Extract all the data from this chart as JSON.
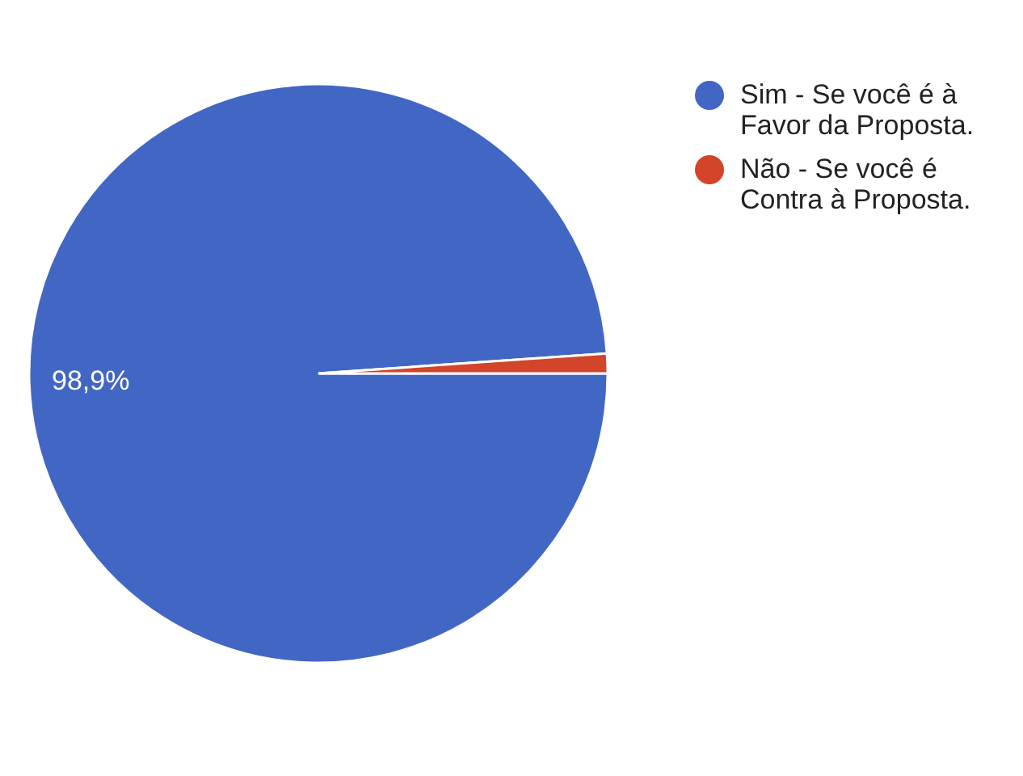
{
  "chart_data": {
    "type": "pie",
    "categories": [
      "Sim - Se você é à Favor da Proposta.",
      "Não - Se você é Contra à Proposta."
    ],
    "values": [
      98.9,
      1.1
    ],
    "colors": [
      "#4266c4",
      "#d2452b"
    ],
    "value_labels": [
      "98,9%",
      null
    ],
    "legend": "top right"
  }
}
